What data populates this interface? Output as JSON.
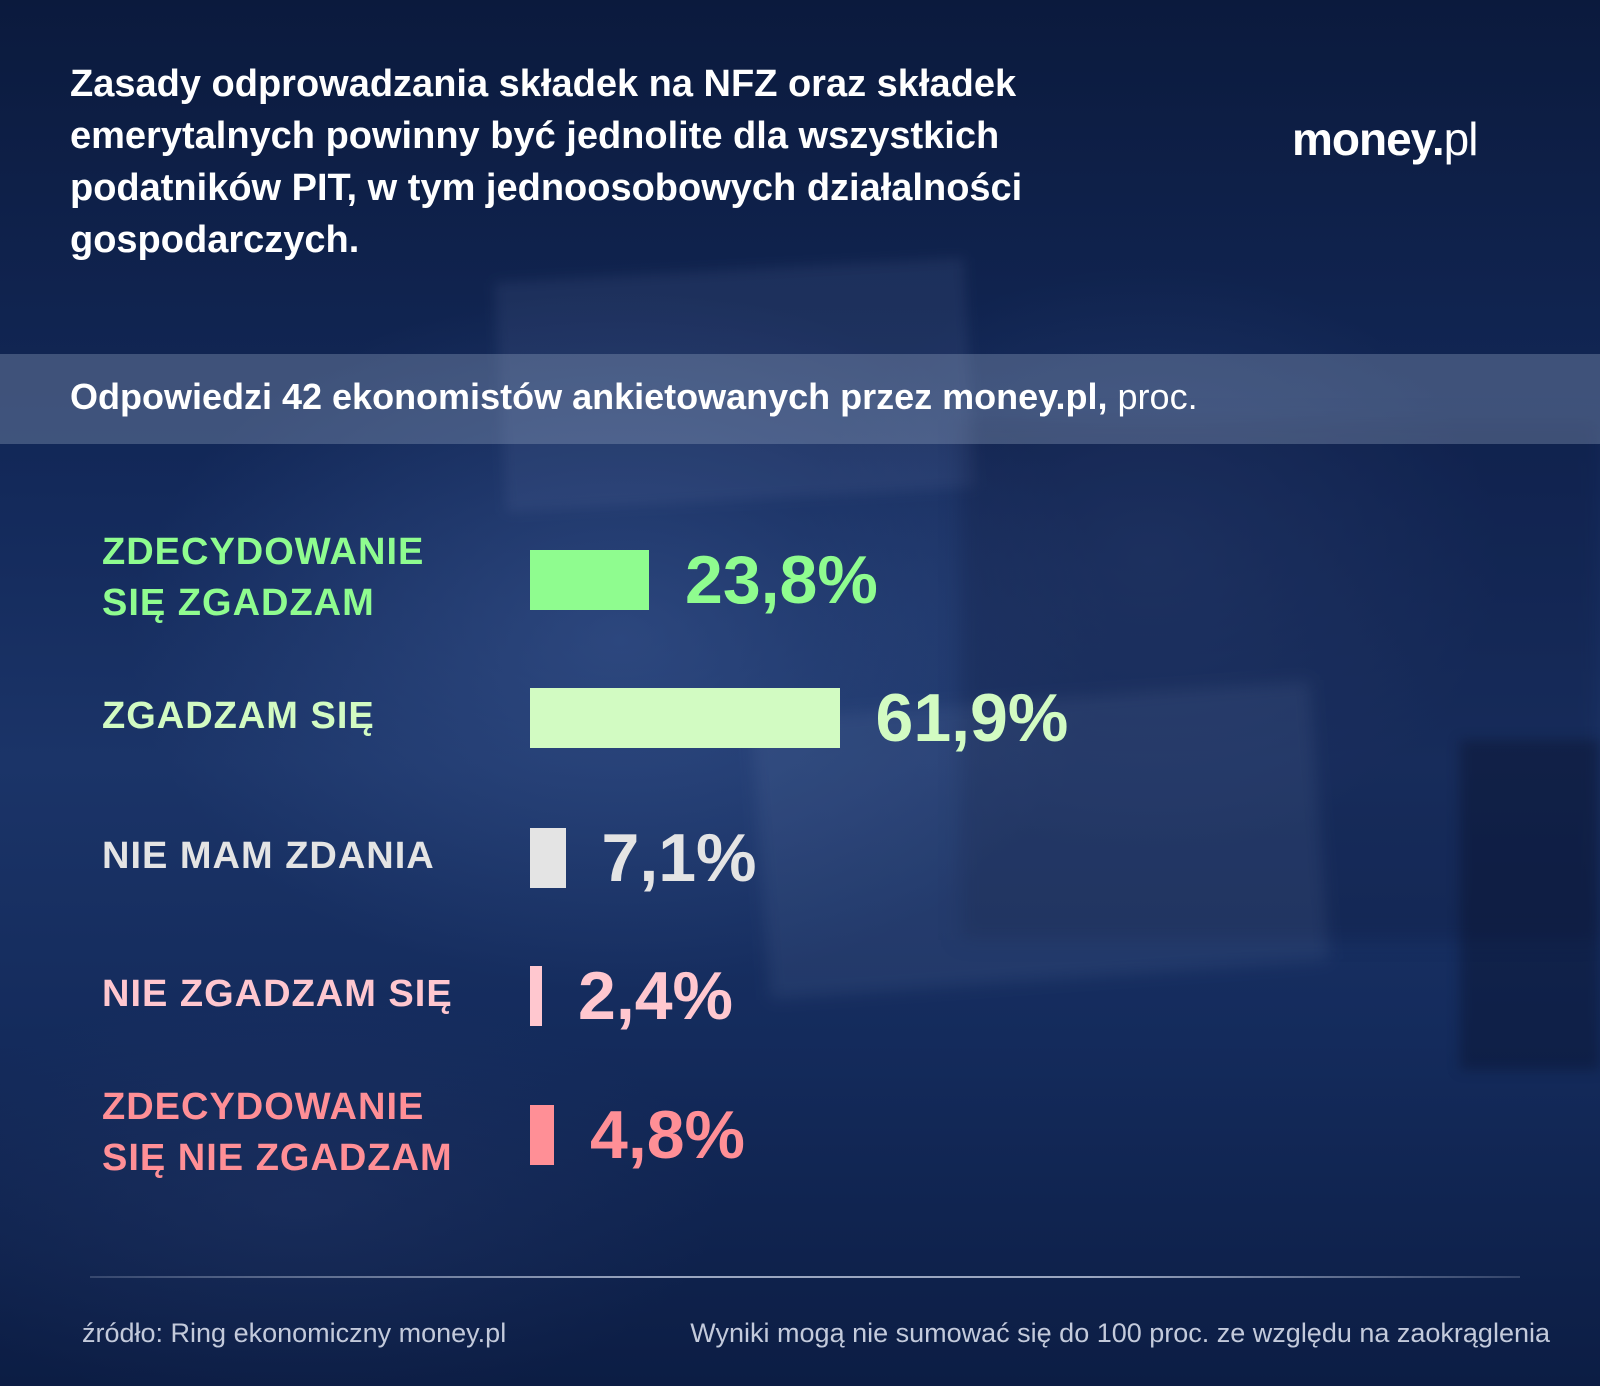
{
  "header": {
    "title": "Zasady odprowadzania składek na NFZ oraz składek emerytalnych powinny być jednolite dla wszystkich podatników PIT, w tym jednoosobowych działalności gospodarczych.",
    "logo_main": "money.",
    "logo_suffix": "pl"
  },
  "subtitle": {
    "strong": "Odpowiedzi 42 ekonomistów ankietowanych przez money.pl,",
    "rest": " proc."
  },
  "chart_data": {
    "type": "bar",
    "orientation": "horizontal",
    "categories": [
      "ZDECYDOWANIE SIĘ ZGADZAM",
      "ZGADZAM SIĘ",
      "NIE MAM ZDANIA",
      "NIE ZGADZAM SIĘ",
      "ZDECYDOWANIE SIĘ NIE ZGADZAM"
    ],
    "values": [
      23.8,
      61.9,
      7.1,
      2.4,
      4.8
    ],
    "value_labels": [
      "23,8%",
      "61,9%",
      "7,1%",
      "2,4%",
      "4,8%"
    ],
    "colors": [
      "#8ffc8f",
      "#d2fbc2",
      "#e4e4e4",
      "#ffc7cf",
      "#ff8f96"
    ],
    "xlim": [
      0,
      100
    ]
  },
  "footer": {
    "source": "źródło: Ring ekonomiczny money.pl",
    "note": "Wyniki mogą nie sumować się do 100 proc. ze względu na zaokrąglenia"
  }
}
